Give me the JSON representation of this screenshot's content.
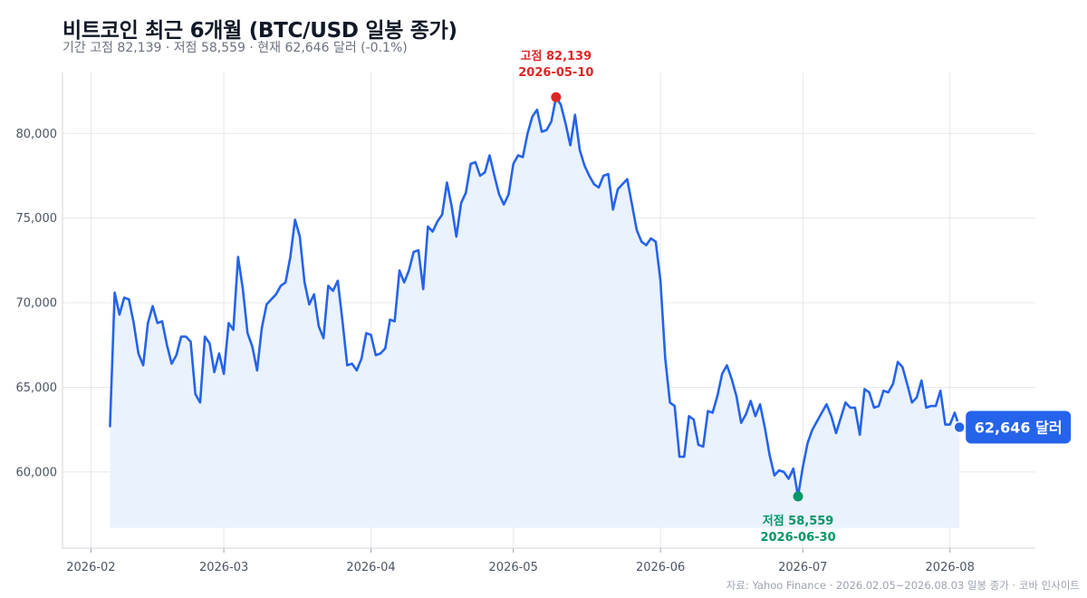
{
  "header": {
    "title": "비트코인 최근 6개월 (BTC/USD 일봉 종가)",
    "subtitle": "기간 고점 82,139 · 저점 58,559 · 현재 62,646 달러 (-0.1%)"
  },
  "footer": {
    "source": "자료: Yahoo Finance · 2026.02.05~2026.08.03 일봉 종가 · 코바 인사이트"
  },
  "colors": {
    "line": "#2563eb",
    "fill": "#eaf2fd",
    "high": "#dc2626",
    "low": "#059669",
    "grid": "#e5e7eb"
  },
  "chart_data": {
    "type": "area",
    "title": "비트코인 최근 6개월 (BTC/USD 일봉 종가)",
    "xlabel": "",
    "ylabel": "",
    "x_ticks": [
      "2026-02",
      "2026-03",
      "2026-04",
      "2026-05",
      "2026-06",
      "2026-07",
      "2026-08"
    ],
    "y_ticks": [
      "60,000",
      "65,000",
      "70,000",
      "75,000",
      "80,000"
    ],
    "xlim": [
      "2026-01-26",
      "2026-08-19"
    ],
    "ylim": [
      55500,
      83600
    ],
    "grid": true,
    "series": [
      {
        "points": [
          [
            "2026-02-05",
            62700
          ],
          [
            "2026-02-06",
            70600
          ],
          [
            "2026-02-07",
            69300
          ],
          [
            "2026-02-08",
            70300
          ],
          [
            "2026-02-09",
            70200
          ],
          [
            "2026-02-10",
            68800
          ],
          [
            "2026-02-11",
            67000
          ],
          [
            "2026-02-12",
            66300
          ],
          [
            "2026-02-13",
            68800
          ],
          [
            "2026-02-14",
            69800
          ],
          [
            "2026-02-15",
            68800
          ],
          [
            "2026-02-16",
            68900
          ],
          [
            "2026-02-17",
            67500
          ],
          [
            "2026-02-18",
            66400
          ],
          [
            "2026-02-19",
            66900
          ],
          [
            "2026-02-20",
            68000
          ],
          [
            "2026-02-21",
            68000
          ],
          [
            "2026-02-22",
            67700
          ],
          [
            "2026-02-23",
            64600
          ],
          [
            "2026-02-24",
            64100
          ],
          [
            "2026-02-25",
            68000
          ],
          [
            "2026-02-26",
            67600
          ],
          [
            "2026-02-27",
            65900
          ],
          [
            "2026-02-28",
            67000
          ],
          [
            "2026-03-01",
            65800
          ],
          [
            "2026-03-02",
            68800
          ],
          [
            "2026-03-03",
            68400
          ],
          [
            "2026-03-04",
            72700
          ],
          [
            "2026-03-05",
            70800
          ],
          [
            "2026-03-06",
            68200
          ],
          [
            "2026-03-07",
            67400
          ],
          [
            "2026-03-08",
            66000
          ],
          [
            "2026-03-09",
            68500
          ],
          [
            "2026-03-10",
            69900
          ],
          [
            "2026-03-11",
            70200
          ],
          [
            "2026-03-12",
            70500
          ],
          [
            "2026-03-13",
            71000
          ],
          [
            "2026-03-14",
            71200
          ],
          [
            "2026-03-15",
            72700
          ],
          [
            "2026-03-16",
            74900
          ],
          [
            "2026-03-17",
            73900
          ],
          [
            "2026-03-18",
            71200
          ],
          [
            "2026-03-19",
            69900
          ],
          [
            "2026-03-20",
            70500
          ],
          [
            "2026-03-21",
            68600
          ],
          [
            "2026-03-22",
            67900
          ],
          [
            "2026-03-23",
            71000
          ],
          [
            "2026-03-24",
            70700
          ],
          [
            "2026-03-25",
            71300
          ],
          [
            "2026-03-26",
            68900
          ],
          [
            "2026-03-27",
            66300
          ],
          [
            "2026-03-28",
            66400
          ],
          [
            "2026-03-29",
            66000
          ],
          [
            "2026-03-30",
            66700
          ],
          [
            "2026-03-31",
            68200
          ],
          [
            "2026-04-01",
            68100
          ],
          [
            "2026-04-02",
            66900
          ],
          [
            "2026-04-03",
            67000
          ],
          [
            "2026-04-04",
            67300
          ],
          [
            "2026-04-05",
            69000
          ],
          [
            "2026-04-06",
            68900
          ],
          [
            "2026-04-07",
            71900
          ],
          [
            "2026-04-08",
            71200
          ],
          [
            "2026-04-09",
            71900
          ],
          [
            "2026-04-10",
            73000
          ],
          [
            "2026-04-11",
            73100
          ],
          [
            "2026-04-12",
            70800
          ],
          [
            "2026-04-13",
            74500
          ],
          [
            "2026-04-14",
            74200
          ],
          [
            "2026-04-15",
            74800
          ],
          [
            "2026-04-16",
            75200
          ],
          [
            "2026-04-17",
            77100
          ],
          [
            "2026-04-18",
            75700
          ],
          [
            "2026-04-19",
            73900
          ],
          [
            "2026-04-20",
            75900
          ],
          [
            "2026-04-21",
            76500
          ],
          [
            "2026-04-22",
            78200
          ],
          [
            "2026-04-23",
            78300
          ],
          [
            "2026-04-24",
            77500
          ],
          [
            "2026-04-25",
            77700
          ],
          [
            "2026-04-26",
            78700
          ],
          [
            "2026-04-27",
            77500
          ],
          [
            "2026-04-28",
            76400
          ],
          [
            "2026-04-29",
            75800
          ],
          [
            "2026-04-30",
            76400
          ],
          [
            "2026-05-01",
            78200
          ],
          [
            "2026-05-02",
            78700
          ],
          [
            "2026-05-03",
            78600
          ],
          [
            "2026-05-04",
            80000
          ],
          [
            "2026-05-05",
            81000
          ],
          [
            "2026-05-06",
            81400
          ],
          [
            "2026-05-07",
            80100
          ],
          [
            "2026-05-08",
            80200
          ],
          [
            "2026-05-09",
            80700
          ],
          [
            "2026-05-10",
            82139
          ],
          [
            "2026-05-11",
            81700
          ],
          [
            "2026-05-12",
            80600
          ],
          [
            "2026-05-13",
            79300
          ],
          [
            "2026-05-14",
            81100
          ],
          [
            "2026-05-15",
            79000
          ],
          [
            "2026-05-16",
            78100
          ],
          [
            "2026-05-17",
            77500
          ],
          [
            "2026-05-18",
            77000
          ],
          [
            "2026-05-19",
            76800
          ],
          [
            "2026-05-20",
            77500
          ],
          [
            "2026-05-21",
            77600
          ],
          [
            "2026-05-22",
            75500
          ],
          [
            "2026-05-23",
            76700
          ],
          [
            "2026-05-24",
            77000
          ],
          [
            "2026-05-25",
            77300
          ],
          [
            "2026-05-26",
            75800
          ],
          [
            "2026-05-27",
            74300
          ],
          [
            "2026-05-28",
            73600
          ],
          [
            "2026-05-29",
            73400
          ],
          [
            "2026-05-30",
            73800
          ],
          [
            "2026-05-31",
            73600
          ],
          [
            "2026-06-01",
            71300
          ],
          [
            "2026-06-02",
            66700
          ],
          [
            "2026-06-03",
            64100
          ],
          [
            "2026-06-04",
            63900
          ],
          [
            "2026-06-05",
            60900
          ],
          [
            "2026-06-06",
            60900
          ],
          [
            "2026-06-07",
            63300
          ],
          [
            "2026-06-08",
            63100
          ],
          [
            "2026-06-09",
            61600
          ],
          [
            "2026-06-10",
            61500
          ],
          [
            "2026-06-11",
            63600
          ],
          [
            "2026-06-12",
            63500
          ],
          [
            "2026-06-13",
            64500
          ],
          [
            "2026-06-14",
            65800
          ],
          [
            "2026-06-15",
            66300
          ],
          [
            "2026-06-16",
            65500
          ],
          [
            "2026-06-17",
            64500
          ],
          [
            "2026-06-18",
            62900
          ],
          [
            "2026-06-19",
            63400
          ],
          [
            "2026-06-20",
            64200
          ],
          [
            "2026-06-21",
            63300
          ],
          [
            "2026-06-22",
            64000
          ],
          [
            "2026-06-23",
            62600
          ],
          [
            "2026-06-24",
            61000
          ],
          [
            "2026-06-25",
            59800
          ],
          [
            "2026-06-26",
            60100
          ],
          [
            "2026-06-27",
            60000
          ],
          [
            "2026-06-28",
            59600
          ],
          [
            "2026-06-29",
            60200
          ],
          [
            "2026-06-30",
            58559
          ],
          [
            "2026-07-01",
            60300
          ],
          [
            "2026-07-02",
            61700
          ],
          [
            "2026-07-03",
            62500
          ],
          [
            "2026-07-04",
            63000
          ],
          [
            "2026-07-05",
            63500
          ],
          [
            "2026-07-06",
            64000
          ],
          [
            "2026-07-07",
            63300
          ],
          [
            "2026-07-08",
            62300
          ],
          [
            "2026-07-09",
            63200
          ],
          [
            "2026-07-10",
            64100
          ],
          [
            "2026-07-11",
            63800
          ],
          [
            "2026-07-12",
            63800
          ],
          [
            "2026-07-13",
            62200
          ],
          [
            "2026-07-14",
            64900
          ],
          [
            "2026-07-15",
            64700
          ],
          [
            "2026-07-16",
            63800
          ],
          [
            "2026-07-17",
            63900
          ],
          [
            "2026-07-18",
            64800
          ],
          [
            "2026-07-19",
            64700
          ],
          [
            "2026-07-20",
            65200
          ],
          [
            "2026-07-21",
            66500
          ],
          [
            "2026-07-22",
            66200
          ],
          [
            "2026-07-23",
            65200
          ],
          [
            "2026-07-24",
            64100
          ],
          [
            "2026-07-25",
            64400
          ],
          [
            "2026-07-26",
            65400
          ],
          [
            "2026-07-27",
            63800
          ],
          [
            "2026-07-28",
            63900
          ],
          [
            "2026-07-29",
            63900
          ],
          [
            "2026-07-30",
            64800
          ],
          [
            "2026-07-31",
            62800
          ],
          [
            "2026-08-01",
            62800
          ],
          [
            "2026-08-02",
            63500
          ],
          [
            "2026-08-03",
            62646
          ]
        ]
      }
    ],
    "annotations": {
      "high": {
        "date": "2026-05-10",
        "value": 82139,
        "label": "고점 82,139",
        "date_label": "2026-05-10"
      },
      "low": {
        "date": "2026-06-30",
        "value": 58559,
        "label": "저점 58,559",
        "date_label": "2026-06-30"
      },
      "current": {
        "date": "2026-08-03",
        "value": 62646,
        "label": "62,646 달러"
      }
    }
  }
}
